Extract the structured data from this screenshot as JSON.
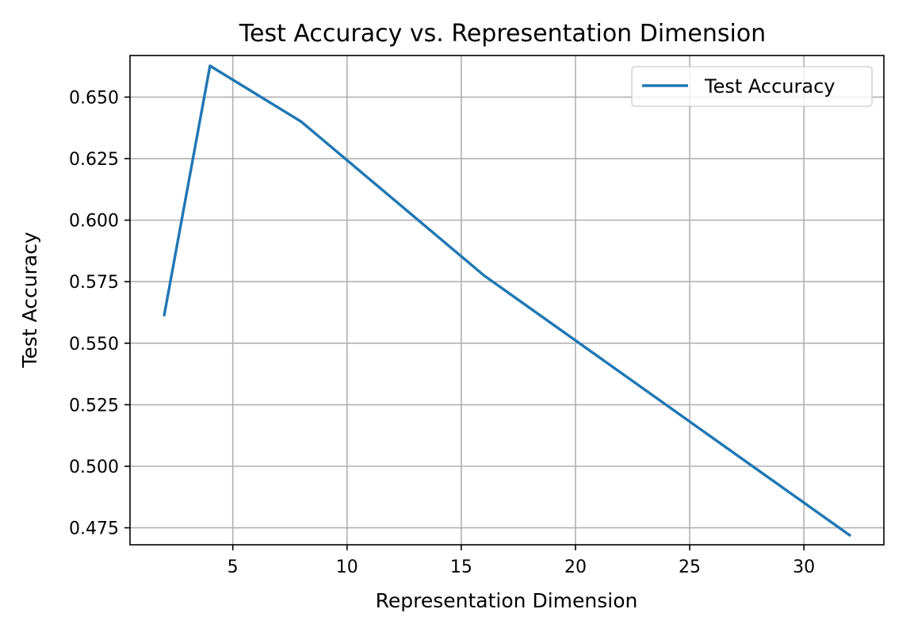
{
  "chart_data": {
    "type": "line",
    "title": "Test Accuracy vs. Representation Dimension",
    "xlabel": "Representation Dimension",
    "ylabel": "Test Accuracy",
    "xlim": [
      0.5,
      33.5
    ],
    "ylim": [
      0.4681,
      0.6669
    ],
    "xticks": [
      5,
      10,
      15,
      20,
      25,
      30
    ],
    "xtick_labels": [
      "5",
      "10",
      "15",
      "20",
      "25",
      "30"
    ],
    "yticks": [
      0.475,
      0.5,
      0.525,
      0.55,
      0.575,
      0.6,
      0.625,
      0.65
    ],
    "ytick_labels": [
      "0.475",
      "0.500",
      "0.525",
      "0.550",
      "0.575",
      "0.600",
      "0.625",
      "0.650"
    ],
    "grid": true,
    "legend_position": "top-right",
    "series": [
      {
        "name": "Test Accuracy",
        "color": "#1f77b4",
        "x": [
          2,
          4,
          8,
          16,
          32
        ],
        "y": [
          0.5615,
          0.6627,
          0.64,
          0.5775,
          0.472
        ]
      }
    ]
  }
}
